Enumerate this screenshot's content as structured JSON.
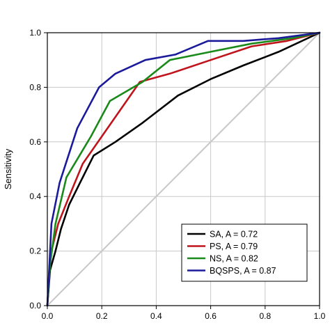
{
  "chart_data": {
    "type": "line",
    "title": "",
    "xlabel": "",
    "ylabel": "Sensitivity",
    "xlim": [
      0,
      1
    ],
    "ylim": [
      0,
      1
    ],
    "x_ticks": [
      "0.0",
      "0.2",
      "0.4",
      "0.6",
      "0.8",
      "1.0"
    ],
    "y_ticks": [
      "0.0",
      "0.2",
      "0.4",
      "0.6",
      "0.8",
      "1.0"
    ],
    "grid": true,
    "legend_position": "bottom-right",
    "reference_line": {
      "x": [
        0,
        1
      ],
      "y": [
        0,
        1
      ],
      "color": "#c8c8c8"
    },
    "series": [
      {
        "name": "SA, A = 0.72",
        "color": "#000000",
        "x": [
          0,
          0.01,
          0.03,
          0.05,
          0.08,
          0.12,
          0.17,
          0.25,
          0.35,
          0.48,
          0.6,
          0.72,
          0.85,
          1.0
        ],
        "y": [
          0,
          0.13,
          0.2,
          0.28,
          0.37,
          0.45,
          0.55,
          0.6,
          0.67,
          0.77,
          0.83,
          0.88,
          0.93,
          1.0
        ]
      },
      {
        "name": "PS, A = 0.79",
        "color": "#c0141c",
        "x": [
          0,
          0.01,
          0.04,
          0.08,
          0.13,
          0.2,
          0.27,
          0.34,
          0.45,
          0.6,
          0.75,
          0.88,
          1.0
        ],
        "y": [
          0,
          0.18,
          0.3,
          0.4,
          0.52,
          0.62,
          0.72,
          0.82,
          0.85,
          0.9,
          0.95,
          0.97,
          1.0
        ]
      },
      {
        "name": "NS, A = 0.82",
        "color": "#1a8a1a",
        "x": [
          0,
          0.01,
          0.03,
          0.07,
          0.16,
          0.23,
          0.35,
          0.45,
          0.6,
          0.75,
          0.9,
          1.0
        ],
        "y": [
          0,
          0.15,
          0.3,
          0.47,
          0.62,
          0.75,
          0.82,
          0.9,
          0.93,
          0.96,
          0.98,
          1.0
        ]
      },
      {
        "name": "BQSPS, A = 0.87",
        "color": "#1a1a9a",
        "x": [
          0,
          0.005,
          0.015,
          0.045,
          0.11,
          0.19,
          0.25,
          0.36,
          0.47,
          0.59,
          0.72,
          0.85,
          1.0
        ],
        "y": [
          0,
          0.1,
          0.3,
          0.45,
          0.65,
          0.8,
          0.85,
          0.9,
          0.92,
          0.97,
          0.97,
          0.98,
          1.0
        ]
      }
    ]
  }
}
